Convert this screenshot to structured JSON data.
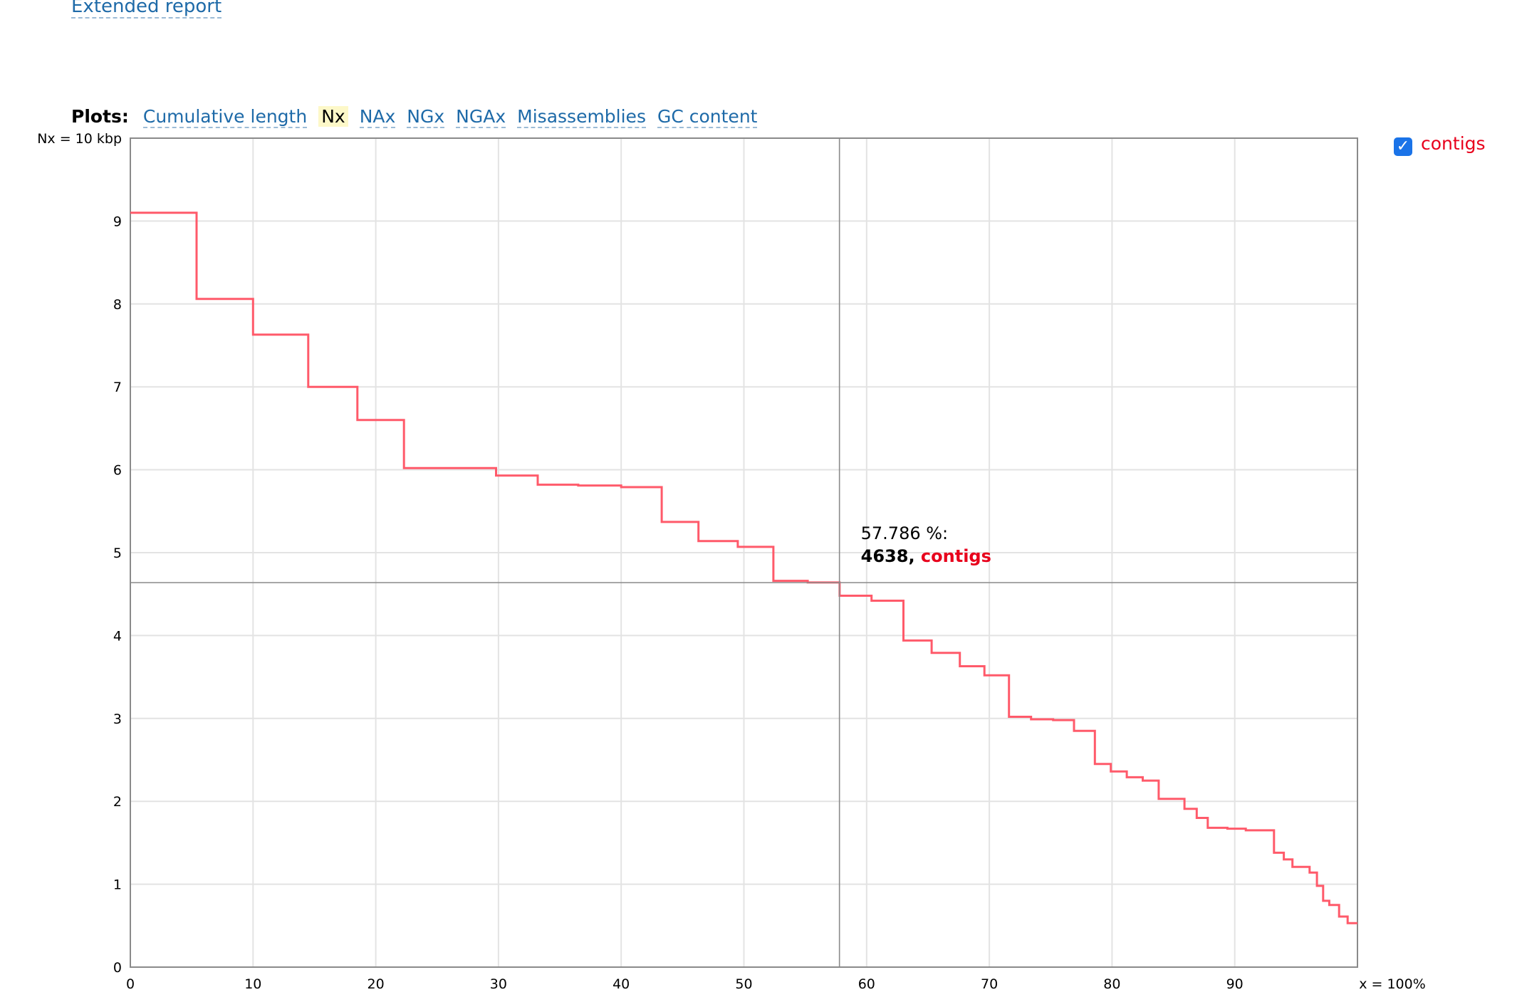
{
  "extended_report_label": "Extended report",
  "plots": {
    "label": "Plots:",
    "tabs": [
      {
        "label": "Cumulative length",
        "active": false
      },
      {
        "label": "Nx",
        "active": true
      },
      {
        "label": "NAx",
        "active": false
      },
      {
        "label": "NGx",
        "active": false
      },
      {
        "label": "NGAx",
        "active": false
      },
      {
        "label": "Misassemblies",
        "active": false
      },
      {
        "label": "GC content",
        "active": false
      }
    ]
  },
  "legend": {
    "checked": true,
    "label": "contigs",
    "color": "#e8001c"
  },
  "chart_data": {
    "type": "line",
    "step": true,
    "ylabel_top": "Nx = 10 kbp",
    "xlabel_end": "x = 100%",
    "xlim": [
      0,
      100
    ],
    "ylim": [
      0,
      10
    ],
    "x_ticks": [
      "0",
      "10",
      "20",
      "30",
      "40",
      "50",
      "60",
      "70",
      "80",
      "90"
    ],
    "y_ticks": [
      "0",
      "1",
      "2",
      "3",
      "4",
      "5",
      "6",
      "7",
      "8",
      "9"
    ],
    "grid": true,
    "series": [
      {
        "name": "contigs",
        "color": "#ff5a6a",
        "points": [
          [
            0,
            9.1
          ],
          [
            5.4,
            9.1
          ],
          [
            5.4,
            8.06
          ],
          [
            10,
            8.06
          ],
          [
            10,
            7.63
          ],
          [
            14.5,
            7.63
          ],
          [
            14.5,
            7.0
          ],
          [
            18.5,
            7.0
          ],
          [
            18.5,
            6.6
          ],
          [
            22.3,
            6.6
          ],
          [
            22.3,
            6.02
          ],
          [
            29.8,
            6.02
          ],
          [
            29.8,
            5.93
          ],
          [
            33.2,
            5.93
          ],
          [
            33.2,
            5.82
          ],
          [
            36.5,
            5.82
          ],
          [
            36.5,
            5.81
          ],
          [
            40,
            5.81
          ],
          [
            40,
            5.79
          ],
          [
            43.3,
            5.79
          ],
          [
            43.3,
            5.37
          ],
          [
            46.3,
            5.37
          ],
          [
            46.3,
            5.14
          ],
          [
            49.5,
            5.14
          ],
          [
            49.5,
            5.07
          ],
          [
            52.4,
            5.07
          ],
          [
            52.4,
            4.66
          ],
          [
            55.2,
            4.66
          ],
          [
            55.2,
            4.64
          ],
          [
            57.8,
            4.64
          ],
          [
            57.8,
            4.48
          ],
          [
            60.4,
            4.48
          ],
          [
            60.4,
            4.42
          ],
          [
            63,
            4.42
          ],
          [
            63,
            3.94
          ],
          [
            65.3,
            3.94
          ],
          [
            65.3,
            3.79
          ],
          [
            67.6,
            3.79
          ],
          [
            67.6,
            3.63
          ],
          [
            69.6,
            3.63
          ],
          [
            69.6,
            3.52
          ],
          [
            71.6,
            3.52
          ],
          [
            71.6,
            3.02
          ],
          [
            73.4,
            3.02
          ],
          [
            73.4,
            2.99
          ],
          [
            75.2,
            2.99
          ],
          [
            75.2,
            2.98
          ],
          [
            76.9,
            2.98
          ],
          [
            76.9,
            2.85
          ],
          [
            78.6,
            2.85
          ],
          [
            78.6,
            2.45
          ],
          [
            79.9,
            2.45
          ],
          [
            79.9,
            2.36
          ],
          [
            81.2,
            2.36
          ],
          [
            81.2,
            2.29
          ],
          [
            82.5,
            2.29
          ],
          [
            82.5,
            2.25
          ],
          [
            83.8,
            2.25
          ],
          [
            83.8,
            2.03
          ],
          [
            85.9,
            2.03
          ],
          [
            85.9,
            1.91
          ],
          [
            86.9,
            1.91
          ],
          [
            86.9,
            1.8
          ],
          [
            87.8,
            1.8
          ],
          [
            87.8,
            1.68
          ],
          [
            89.4,
            1.68
          ],
          [
            89.4,
            1.67
          ],
          [
            90.9,
            1.67
          ],
          [
            90.9,
            1.65
          ],
          [
            93.2,
            1.65
          ],
          [
            93.2,
            1.38
          ],
          [
            94,
            1.38
          ],
          [
            94,
            1.3
          ],
          [
            94.7,
            1.3
          ],
          [
            94.7,
            1.21
          ],
          [
            96.1,
            1.21
          ],
          [
            96.1,
            1.14
          ],
          [
            96.7,
            1.14
          ],
          [
            96.7,
            0.98
          ],
          [
            97.2,
            0.98
          ],
          [
            97.2,
            0.8
          ],
          [
            97.7,
            0.8
          ],
          [
            97.7,
            0.75
          ],
          [
            98.5,
            0.75
          ],
          [
            98.5,
            0.61
          ],
          [
            99.2,
            0.61
          ],
          [
            99.2,
            0.53
          ],
          [
            100,
            0.53
          ]
        ]
      }
    ],
    "tooltip": {
      "x": 57.786,
      "y": 4.638,
      "line1": "57.786 %:",
      "value": "4638,",
      "series": "contigs"
    }
  }
}
